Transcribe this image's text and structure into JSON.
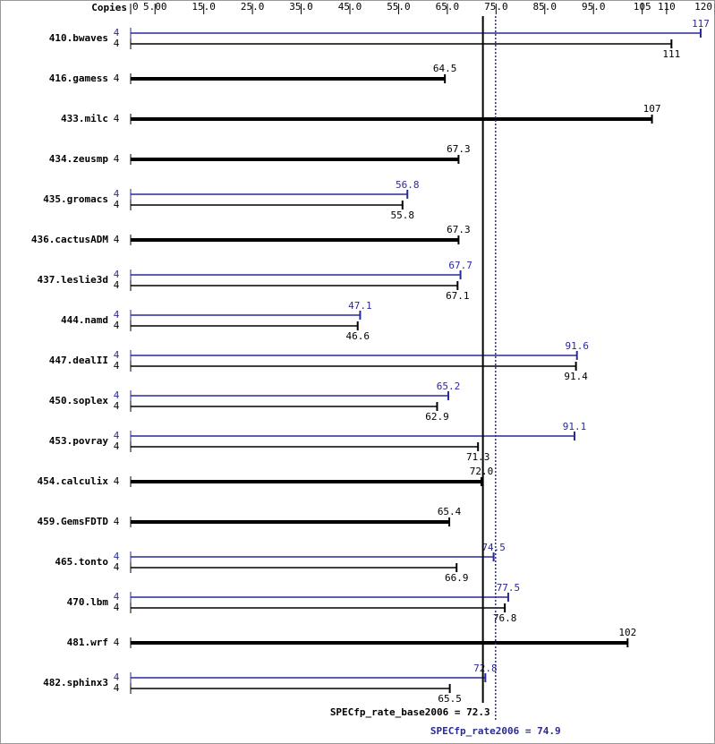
{
  "chart_data": {
    "type": "bar",
    "copies_label": "Copies",
    "categories": [
      "410.bwaves",
      "416.gamess",
      "433.milc",
      "434.zeusmp",
      "435.gromacs",
      "436.cactusADM",
      "437.leslie3d",
      "444.namd",
      "447.dealII",
      "450.soplex",
      "453.povray",
      "454.calculix",
      "459.GemsFDTD",
      "465.tonto",
      "470.lbm",
      "481.wrf",
      "482.sphinx3"
    ],
    "copies_base": [
      4,
      4,
      4,
      4,
      4,
      4,
      4,
      4,
      4,
      4,
      4,
      4,
      4,
      4,
      4,
      4,
      4
    ],
    "copies_peak": [
      4,
      null,
      null,
      null,
      4,
      null,
      4,
      4,
      4,
      4,
      4,
      null,
      null,
      4,
      4,
      null,
      4
    ],
    "series": [
      {
        "color": "#000000",
        "values": [
          111,
          64.5,
          107,
          67.3,
          55.8,
          67.3,
          67.1,
          46.6,
          91.4,
          62.9,
          71.3,
          72.0,
          65.4,
          66.9,
          76.8,
          102,
          65.5
        ],
        "value_labels": [
          "111",
          "64.5",
          "107",
          "67.3",
          "55.8",
          "67.3",
          "67.1",
          "46.6",
          "91.4",
          "62.9",
          "71.3",
          "72.0",
          "65.4",
          "66.9",
          "76.8",
          "102",
          "65.5"
        ]
      },
      {
        "color": "#29299a",
        "values": [
          117,
          null,
          null,
          null,
          56.8,
          null,
          67.7,
          47.1,
          91.6,
          65.2,
          91.1,
          null,
          null,
          74.5,
          77.5,
          null,
          72.8
        ]
      }
    ],
    "xlim": [
      0,
      117
    ],
    "xticks": [
      0,
      {
        "value": 5,
        "label": "5.00"
      },
      {
        "value": 15,
        "label": "15.0"
      },
      {
        "value": 25,
        "label": "25.0"
      },
      {
        "value": 35,
        "label": "35.0"
      },
      {
        "value": 45,
        "label": "45.0"
      },
      {
        "value": 55,
        "label": "55.0"
      },
      {
        "value": 65,
        "label": "65.0"
      },
      {
        "value": 75,
        "label": "75.0"
      },
      {
        "value": 85,
        "label": "85.0"
      },
      {
        "value": 95,
        "label": "95.0"
      },
      105,
      110,
      120
    ],
    "summary": [
      {
        "label": "SPECfp_rate_base2006 = 72.3",
        "value": 72.3,
        "color": "#000000"
      },
      {
        "label": "SPECfp_rate2006 = 74.9",
        "value": 74.9,
        "color": "#29299a"
      }
    ]
  }
}
